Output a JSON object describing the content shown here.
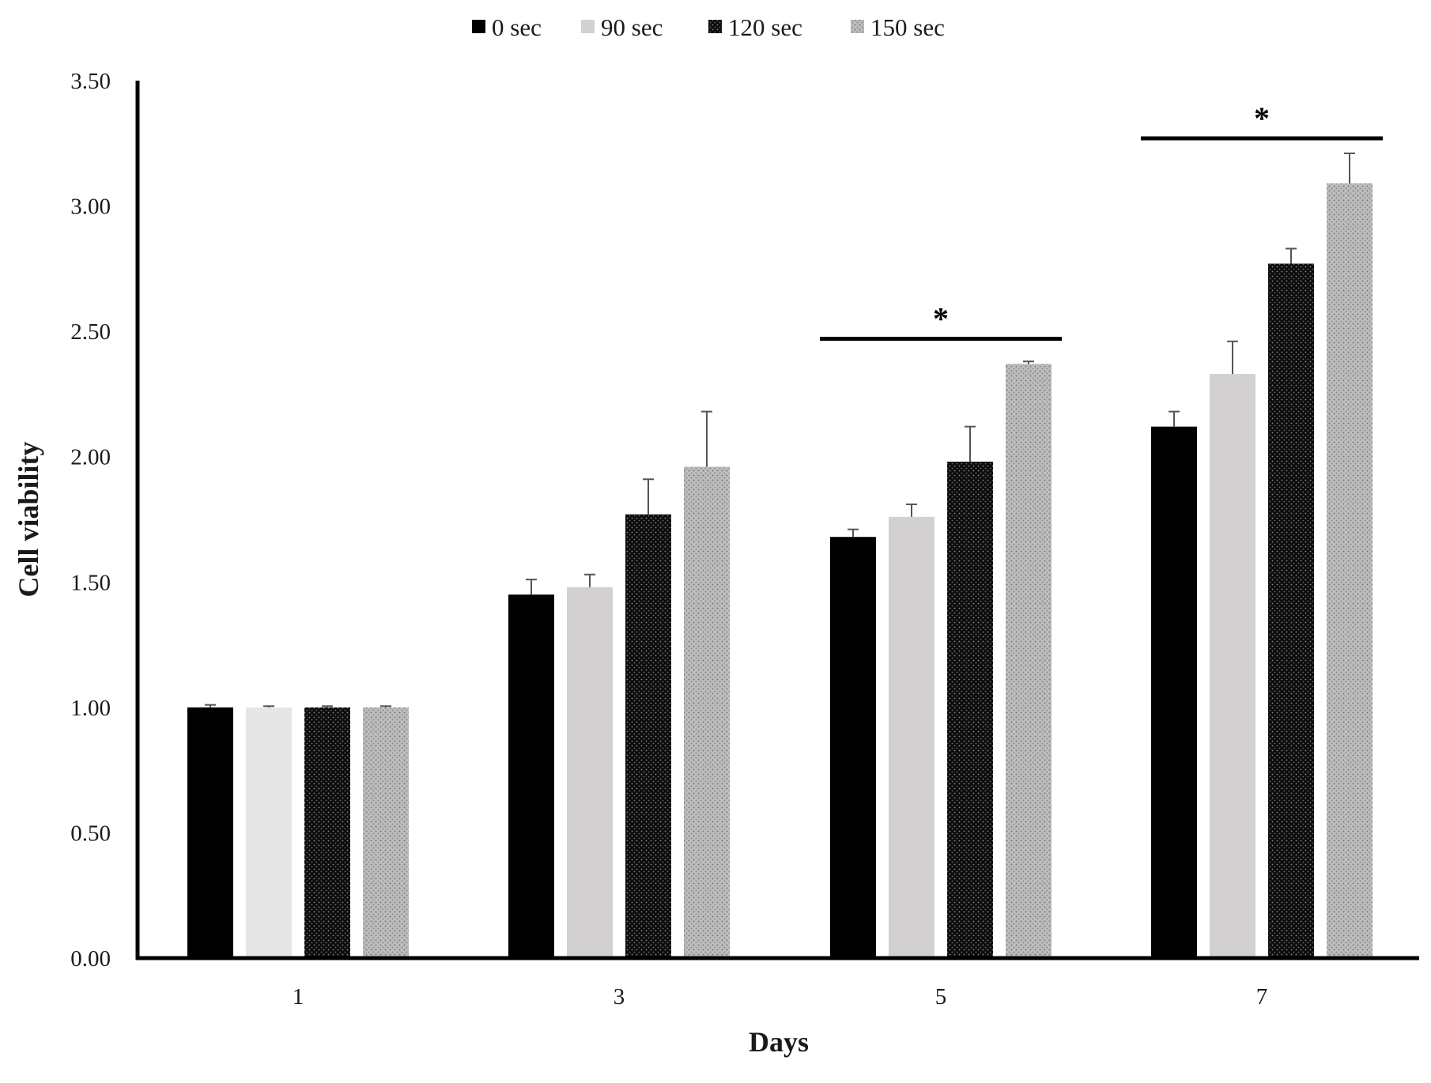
{
  "chart_data": {
    "type": "bar",
    "title": "",
    "xlabel": "Days",
    "ylabel": "Cell viability",
    "categories": [
      "1",
      "3",
      "5",
      "7"
    ],
    "ylim": [
      0,
      3.5
    ],
    "yticks": [
      "0.00",
      "0.50",
      "1.00",
      "1.50",
      "2.00",
      "2.50",
      "3.00",
      "3.50"
    ],
    "ytick_values": [
      0,
      0.5,
      1.0,
      1.5,
      2.0,
      2.5,
      3.0,
      3.5
    ],
    "legend_position": "top-center",
    "grid": false,
    "series": [
      {
        "name": "0 sec",
        "color": "#000000",
        "pattern": "solid",
        "values": [
          1.0,
          1.45,
          1.68,
          2.12
        ],
        "errors": [
          0.01,
          0.06,
          0.03,
          0.06
        ]
      },
      {
        "name": "90 sec",
        "color": "#d2d0d0",
        "pattern": "solid-light",
        "values": [
          1.0,
          1.48,
          1.76,
          2.33
        ],
        "errors": [
          0.005,
          0.05,
          0.05,
          0.13
        ]
      },
      {
        "name": "120 sec",
        "color": "#111111",
        "pattern": "dark-dotted",
        "values": [
          1.0,
          1.77,
          1.98,
          2.77
        ],
        "errors": [
          0.005,
          0.14,
          0.14,
          0.06
        ]
      },
      {
        "name": "150 sec",
        "color": "#b5b5b5",
        "pattern": "light-dotted",
        "values": [
          1.0,
          1.96,
          2.37,
          3.09
        ],
        "errors": [
          0.005,
          0.22,
          0.01,
          0.12
        ]
      }
    ],
    "annotations": [
      {
        "text": "*",
        "category": "5",
        "level": 2.47
      },
      {
        "text": "*",
        "category": "7",
        "level": 3.27
      }
    ]
  }
}
